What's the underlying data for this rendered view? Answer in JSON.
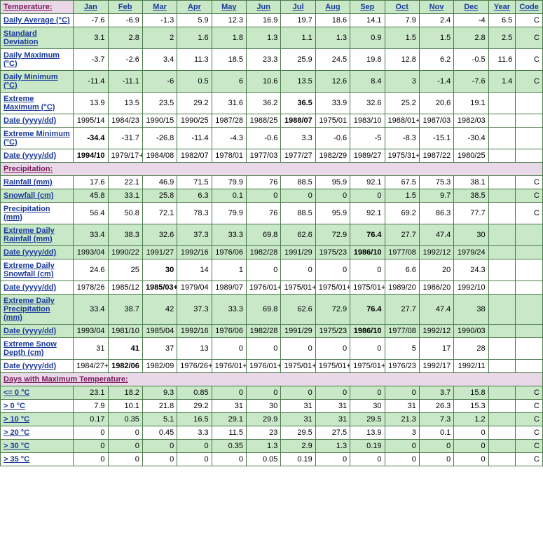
{
  "headers": [
    "Jan",
    "Feb",
    "Mar",
    "Apr",
    "May",
    "Jun",
    "Jul",
    "Aug",
    "Sep",
    "Oct",
    "Nov",
    "Dec",
    "Year",
    "Code"
  ],
  "sections": [
    {
      "title": "Temperature:",
      "rows": [
        {
          "label": "Daily Average (°C)",
          "alt": false,
          "bold": [],
          "cells": [
            "-7.6",
            "-6.9",
            "-1.3",
            "5.9",
            "12.3",
            "16.9",
            "19.7",
            "18.6",
            "14.1",
            "7.9",
            "2.4",
            "-4",
            "6.5",
            "C"
          ]
        },
        {
          "label": "Standard Deviation",
          "alt": true,
          "bold": [],
          "cells": [
            "3.1",
            "2.8",
            "2",
            "1.6",
            "1.8",
            "1.3",
            "1.1",
            "1.3",
            "0.9",
            "1.5",
            "1.5",
            "2.8",
            "2.5",
            "C"
          ]
        },
        {
          "label": "Daily Maximum (°C)",
          "alt": false,
          "bold": [],
          "cells": [
            "-3.7",
            "-2.6",
            "3.4",
            "11.3",
            "18.5",
            "23.3",
            "25.9",
            "24.5",
            "19.8",
            "12.8",
            "6.2",
            "-0.5",
            "11.6",
            "C"
          ]
        },
        {
          "label": "Daily Minimum (°C)",
          "alt": true,
          "bold": [],
          "cells": [
            "-11.4",
            "-11.1",
            "-6",
            "0.5",
            "6",
            "10.6",
            "13.5",
            "12.6",
            "8.4",
            "3",
            "-1.4",
            "-7.6",
            "1.4",
            "C"
          ]
        },
        {
          "label": "Extreme Maximum (°C)",
          "alt": false,
          "bold": [
            6
          ],
          "cells": [
            "13.9",
            "13.5",
            "23.5",
            "29.2",
            "31.6",
            "36.2",
            "36.5",
            "33.9",
            "32.6",
            "25.2",
            "20.6",
            "19.1",
            "",
            ""
          ]
        },
        {
          "label": "Date (yyyy/dd)",
          "alt": false,
          "bold": [
            6
          ],
          "cells": [
            "1995/14",
            "1984/23",
            "1990/15",
            "1990/25",
            "1987/28",
            "1988/25",
            "1988/07",
            "1975/01",
            "1983/10",
            "1988/01+",
            "1987/03",
            "1982/03",
            "",
            ""
          ]
        },
        {
          "label": "Extreme Minimum (°C)",
          "alt": false,
          "bold": [
            0
          ],
          "cells": [
            "-34.4",
            "-31.7",
            "-26.8",
            "-11.4",
            "-4.3",
            "-0.6",
            "3.3",
            "-0.6",
            "-5",
            "-8.3",
            "-15.1",
            "-30.4",
            "",
            ""
          ]
        },
        {
          "label": "Date (yyyy/dd)",
          "alt": false,
          "bold": [
            0
          ],
          "cells": [
            "1994/10",
            "1979/17+",
            "1984/08",
            "1982/07",
            "1978/01",
            "1977/03",
            "1977/27",
            "1982/29",
            "1989/27",
            "1975/31+",
            "1987/22",
            "1980/25",
            "",
            ""
          ]
        }
      ]
    },
    {
      "title": "Precipitation:",
      "rows": [
        {
          "label": "Rainfall (mm)",
          "alt": false,
          "bold": [],
          "cells": [
            "17.6",
            "22.1",
            "46.9",
            "71.5",
            "79.9",
            "76",
            "88.5",
            "95.9",
            "92.1",
            "67.5",
            "75.3",
            "38.1",
            "",
            "C"
          ]
        },
        {
          "label": "Snowfall (cm)",
          "alt": true,
          "bold": [],
          "cells": [
            "45.8",
            "33.1",
            "25.8",
            "6.3",
            "0.1",
            "0",
            "0",
            "0",
            "0",
            "1.5",
            "9.7",
            "38.5",
            "",
            "C"
          ]
        },
        {
          "label": "Precipitation (mm)",
          "alt": false,
          "bold": [],
          "cells": [
            "56.4",
            "50.8",
            "72.1",
            "78.3",
            "79.9",
            "76",
            "88.5",
            "95.9",
            "92.1",
            "69.2",
            "86.3",
            "77.7",
            "",
            "C"
          ]
        },
        {
          "label": "Extreme Daily Rainfall (mm)",
          "alt": true,
          "bold": [
            8
          ],
          "cells": [
            "33.4",
            "38.3",
            "32.6",
            "37.3",
            "33.3",
            "69.8",
            "62.6",
            "72.9",
            "76.4",
            "27.7",
            "47.4",
            "30",
            "",
            ""
          ]
        },
        {
          "label": "Date (yyyy/dd)",
          "alt": true,
          "bold": [
            8
          ],
          "cells": [
            "1993/04",
            "1990/22",
            "1991/27",
            "1992/16",
            "1976/06",
            "1982/28",
            "1991/29",
            "1975/23",
            "1986/10",
            "1977/08",
            "1992/12",
            "1979/24",
            "",
            ""
          ]
        },
        {
          "label": "Extreme Daily Snowfall (cm)",
          "alt": false,
          "bold": [
            2
          ],
          "cells": [
            "24.6",
            "25",
            "30",
            "14",
            "1",
            "0",
            "0",
            "0",
            "0",
            "6.6",
            "20",
            "24.3",
            "",
            ""
          ]
        },
        {
          "label": "Date (yyyy/dd)",
          "alt": false,
          "bold": [
            2
          ],
          "cells": [
            "1978/26",
            "1985/12",
            "1985/03+",
            "1979/04",
            "1989/07",
            "1976/01+",
            "1975/01+",
            "1975/01+",
            "1975/01+",
            "1989/20",
            "1986/20",
            "1992/10",
            "",
            ""
          ]
        },
        {
          "label": "Extreme Daily Precipitation (mm)",
          "alt": true,
          "bold": [
            8
          ],
          "cells": [
            "33.4",
            "38.7",
            "42",
            "37.3",
            "33.3",
            "69.8",
            "62.6",
            "72.9",
            "76.4",
            "27.7",
            "47.4",
            "38",
            "",
            ""
          ]
        },
        {
          "label": "Date (yyyy/dd)",
          "alt": true,
          "bold": [
            8
          ],
          "cells": [
            "1993/04",
            "1981/10",
            "1985/04",
            "1992/16",
            "1976/06",
            "1982/28",
            "1991/29",
            "1975/23",
            "1986/10",
            "1977/08",
            "1992/12",
            "1990/03",
            "",
            ""
          ]
        },
        {
          "label": "Extreme Snow Depth (cm)",
          "alt": false,
          "bold": [
            1
          ],
          "cells": [
            "31",
            "41",
            "37",
            "13",
            "0",
            "0",
            "0",
            "0",
            "0",
            "5",
            "17",
            "28",
            "",
            ""
          ]
        },
        {
          "label": "Date (yyyy/dd)",
          "alt": false,
          "bold": [
            1
          ],
          "cells": [
            "1984/27+",
            "1982/06",
            "1982/09",
            "1976/26+",
            "1976/01+",
            "1976/01+",
            "1975/01+",
            "1975/01+",
            "1975/01+",
            "1976/23",
            "1992/17",
            "1992/11",
            "",
            ""
          ]
        }
      ]
    },
    {
      "title": "Days with Maximum Temperature:",
      "rows": [
        {
          "label": "<= 0 °C",
          "alt": true,
          "bold": [],
          "cells": [
            "23.1",
            "18.2",
            "9.3",
            "0.85",
            "0",
            "0",
            "0",
            "0",
            "0",
            "0",
            "3.7",
            "15.8",
            "",
            "C"
          ]
        },
        {
          "label": "> 0 °C",
          "alt": false,
          "bold": [],
          "cells": [
            "7.9",
            "10.1",
            "21.8",
            "29.2",
            "31",
            "30",
            "31",
            "31",
            "30",
            "31",
            "26.3",
            "15.3",
            "",
            "C"
          ]
        },
        {
          "label": "> 10 °C",
          "alt": true,
          "bold": [],
          "cells": [
            "0.17",
            "0.35",
            "5.1",
            "16.5",
            "29.1",
            "29.9",
            "31",
            "31",
            "29.5",
            "21.3",
            "7.3",
            "1.2",
            "",
            "C"
          ]
        },
        {
          "label": "> 20 °C",
          "alt": false,
          "bold": [],
          "cells": [
            "0",
            "0",
            "0.45",
            "3.3",
            "11.5",
            "23",
            "29.5",
            "27.5",
            "13.9",
            "3",
            "0.1",
            "0",
            "",
            "C"
          ]
        },
        {
          "label": "> 30 °C",
          "alt": true,
          "bold": [],
          "cells": [
            "0",
            "0",
            "0",
            "0",
            "0.35",
            "1.3",
            "2.9",
            "1.3",
            "0.19",
            "0",
            "0",
            "0",
            "",
            "C"
          ]
        },
        {
          "label": "> 35 °C",
          "alt": false,
          "bold": [],
          "cells": [
            "0",
            "0",
            "0",
            "0",
            "0",
            "0.05",
            "0.19",
            "0",
            "0",
            "0",
            "0",
            "0",
            "",
            "C"
          ]
        }
      ]
    }
  ]
}
